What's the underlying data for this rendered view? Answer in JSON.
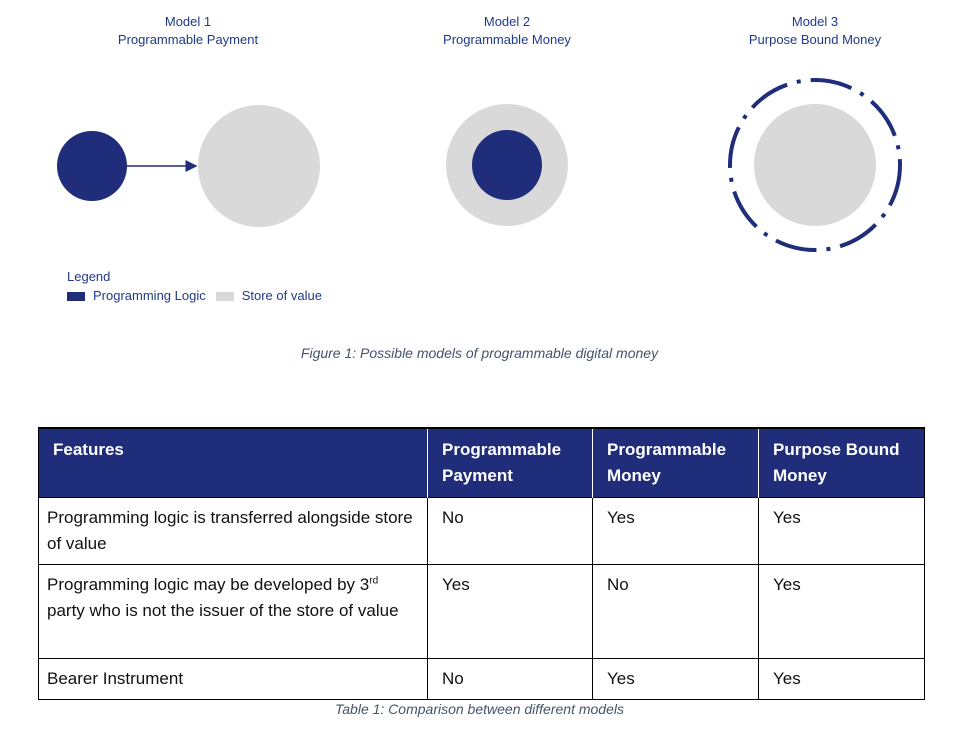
{
  "colors": {
    "programming_logic": "#1f2d7a",
    "store_of_value": "#d9d9d9",
    "title_text": "#1f3a8a",
    "caption_text": "#44546a"
  },
  "models": [
    {
      "number_label": "Model 1",
      "name": "Programmable Payment"
    },
    {
      "number_label": "Model 2",
      "name": "Programmable Money"
    },
    {
      "number_label": "Model 3",
      "name": "Purpose Bound Money"
    }
  ],
  "legend": {
    "title": "Legend",
    "items": [
      "Programming Logic",
      "Store of value"
    ]
  },
  "figure_caption": "Figure 1: Possible models of programmable digital money",
  "table": {
    "headers": [
      "Features",
      "Programmable Payment",
      "Programmable Money",
      "Purpose Bound Money"
    ],
    "rows": [
      {
        "feature": "Programming logic is transferred alongside store of value",
        "values": [
          "No",
          "Yes",
          "Yes"
        ]
      },
      {
        "feature_before_sup": "Programming logic may be developed by 3",
        "feature_sup": "rd",
        "feature_after_sup": " party who is not the issuer of the store of value",
        "values": [
          "Yes",
          "No",
          "Yes"
        ]
      },
      {
        "feature": "Bearer Instrument",
        "values": [
          "No",
          "Yes",
          "Yes"
        ]
      }
    ]
  },
  "table_caption": "Table 1: Comparison between different models"
}
